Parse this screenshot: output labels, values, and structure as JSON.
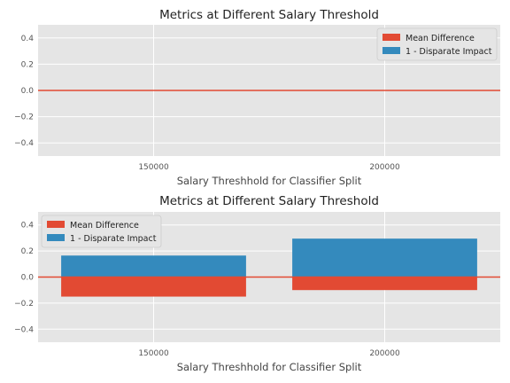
{
  "colors": {
    "background": "#e5e5e5",
    "grid": "#ffffff",
    "mean_difference": "#e24a33",
    "disparate_impact": "#348abd",
    "zero_line": "#e24a33"
  },
  "chart_data": [
    {
      "type": "bar",
      "title": "Metrics at Different Salary Threshold",
      "xlabel": "Salary Threshhold for Classifier Split",
      "ylabel": "",
      "categories": [
        "150000",
        "200000"
      ],
      "xlim": [
        125000,
        225000
      ],
      "ylim": [
        -0.5,
        0.5
      ],
      "yticks": [
        "0.4",
        "0.2",
        "0.0",
        "−0.2",
        "−0.4"
      ],
      "grid": true,
      "legend_position": "top-right",
      "series": [
        {
          "name": "Mean Difference",
          "values": [
            0,
            0
          ]
        },
        {
          "name": "1 - Disparate Impact",
          "values": [
            0,
            0
          ]
        }
      ],
      "reference_line": 0
    },
    {
      "type": "bar",
      "title": "Metrics at Different Salary Threshold",
      "xlabel": "Salary Threshhold for Classifier Split",
      "ylabel": "",
      "categories": [
        "150000",
        "200000"
      ],
      "xlim": [
        125000,
        225000
      ],
      "ylim": [
        -0.5,
        0.5
      ],
      "yticks": [
        "0.4",
        "0.2",
        "0.0",
        "−0.2",
        "−0.4"
      ],
      "grid": true,
      "legend_position": "top-left",
      "series": [
        {
          "name": "Mean Difference",
          "values": [
            -0.15,
            -0.1
          ]
        },
        {
          "name": "1 - Disparate Impact",
          "values": [
            0.165,
            0.295
          ]
        }
      ],
      "reference_line": 0
    }
  ]
}
